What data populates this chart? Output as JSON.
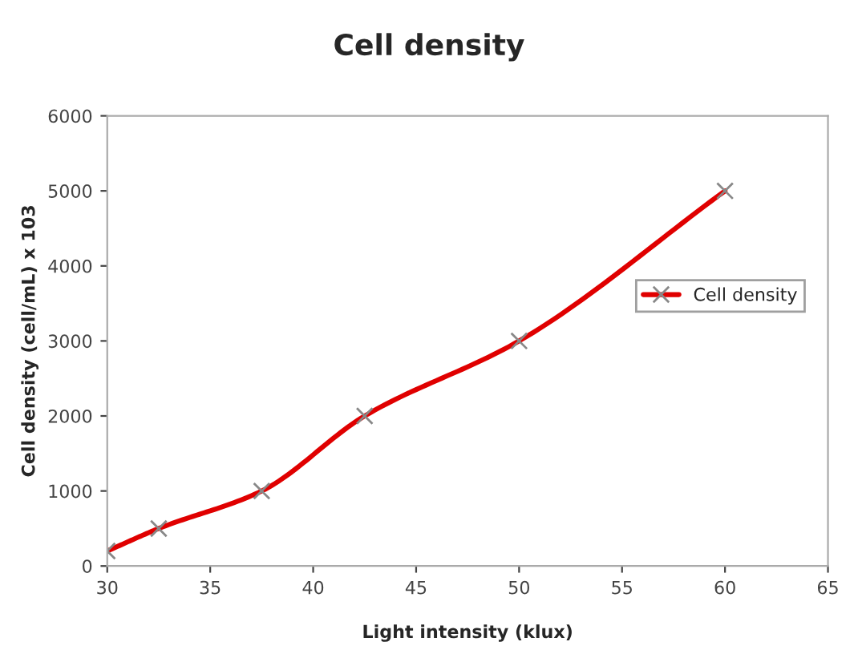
{
  "chart_data": {
    "type": "line",
    "title": "Cell density",
    "xlabel": "Light intensity (klux)",
    "ylabel": "Cell density (cell/mL) x 103",
    "x": [
      30,
      32.5,
      37.5,
      42.5,
      50,
      60
    ],
    "series": [
      {
        "name": "Cell density",
        "color": "#e00000",
        "values": [
          200,
          500,
          1000,
          2000,
          3000,
          5000
        ]
      }
    ],
    "xlim": [
      30,
      65
    ],
    "xticks": [
      30,
      35,
      40,
      45,
      50,
      55,
      60,
      65
    ],
    "ylim": [
      0,
      6000
    ],
    "yticks": [
      0,
      1000,
      2000,
      3000,
      4000,
      5000,
      6000
    ],
    "grid": false,
    "legend": "right",
    "marker": "cross",
    "line_style": "solid"
  }
}
